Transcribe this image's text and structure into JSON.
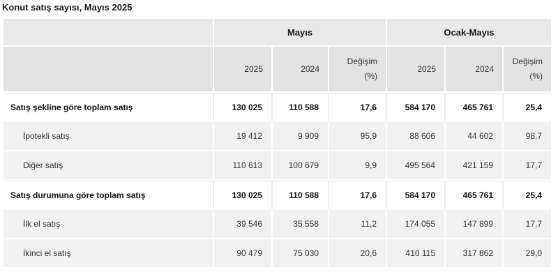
{
  "title": "Konut satış sayısı, Mayıs 2025",
  "chart_data": {
    "type": "table",
    "title": "Konut satış sayısı, Mayıs 2025",
    "column_groups": [
      {
        "label": "Mayıs",
        "columns": [
          "2025",
          "2024",
          "Değişim\n(%)"
        ]
      },
      {
        "label": "Ocak-Mayıs",
        "columns": [
          "2025",
          "2024",
          "Değişim\n(%)"
        ]
      }
    ],
    "rows": [
      {
        "label": "Satış şekline göre toplam satış",
        "bold": true,
        "values": [
          "130 025",
          "110 588",
          "17,6",
          "584 170",
          "465 761",
          "25,4"
        ]
      },
      {
        "label": "İpotekli satış",
        "bold": false,
        "values": [
          "19 412",
          "9 909",
          "95,9",
          "88 606",
          "44 602",
          "98,7"
        ]
      },
      {
        "label": "Diğer satış",
        "bold": false,
        "values": [
          "110 613",
          "100 679",
          "9,9",
          "495 564",
          "421 159",
          "17,7"
        ]
      },
      {
        "label": "Satış durumuna göre toplam satış",
        "bold": true,
        "values": [
          "130 025",
          "110 588",
          "17,6",
          "584 170",
          "465 761",
          "25,4"
        ]
      },
      {
        "label": "İlk el satış",
        "bold": false,
        "values": [
          "39 546",
          "35 558",
          "11,2",
          "174 055",
          "147 899",
          "17,7"
        ]
      },
      {
        "label": "İkinci el satış",
        "bold": false,
        "values": [
          "90 479",
          "75 030",
          "20,6",
          "410 115",
          "317 862",
          "29,0"
        ]
      }
    ]
  }
}
